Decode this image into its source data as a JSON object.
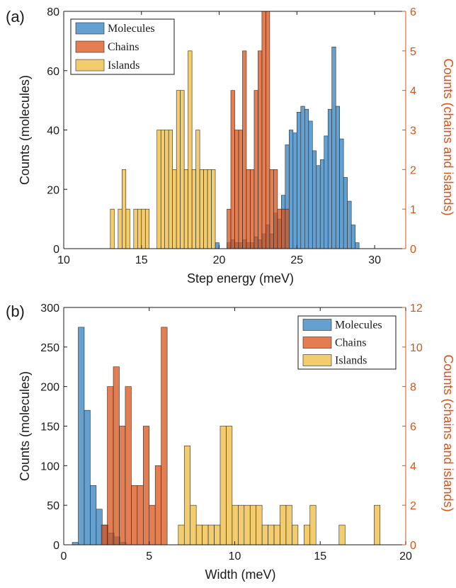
{
  "colors": {
    "molecules": "#4a90c8",
    "chains": "#d95319",
    "islands": "#edb120",
    "axis_right": "#d95319",
    "axis": "#1a1a1a"
  },
  "chart_data": [
    {
      "type": "bar",
      "panel_label": "(a)",
      "xlabel": "Step energy (meV)",
      "ylabel": "Counts (molecules)",
      "ylabel_right": "Counts (chains and islands)",
      "xlim": [
        10,
        32
      ],
      "ylim": [
        0,
        80
      ],
      "ylim_right": [
        0,
        6
      ],
      "xticks": [
        "10",
        "15",
        "20",
        "25",
        "30"
      ],
      "yticks": [
        "0",
        "20",
        "40",
        "60",
        "80"
      ],
      "yticks_right": [
        "0",
        "1",
        "2",
        "3",
        "4",
        "5",
        "6"
      ],
      "bin_width": 0.25,
      "legend": {
        "position": "top-left",
        "entries": [
          "Molecules",
          "Chains",
          "Islands"
        ]
      },
      "series": [
        {
          "name": "Molecules",
          "axis": "left",
          "bin_starts": [
            19.75,
            20.5,
            20.75,
            21,
            21.25,
            21.5,
            21.75,
            22,
            22.25,
            22.5,
            22.75,
            23,
            23.25,
            23.5,
            23.75,
            24,
            24.25,
            24.5,
            24.75,
            25,
            25.25,
            25.5,
            25.75,
            26,
            26.25,
            26.5,
            26.75,
            27,
            27.25,
            27.5,
            27.75,
            28,
            28.25,
            28.5,
            28.75
          ],
          "values": [
            2,
            2,
            3,
            2,
            2,
            3,
            2,
            2,
            4,
            3,
            5,
            8,
            5,
            12,
            10,
            18,
            35,
            40,
            39,
            46,
            48,
            47,
            43,
            33,
            28,
            30,
            38,
            47,
            68,
            48,
            37,
            24,
            16,
            8,
            2
          ]
        },
        {
          "name": "Chains",
          "axis": "right",
          "bin_starts": [
            20.5,
            20.75,
            21.0,
            21.25,
            21.5,
            21.75,
            22.0,
            22.25,
            22.5,
            22.75,
            23.0,
            23.25,
            23.5,
            23.75,
            24.0,
            24.25
          ],
          "values": [
            1,
            4,
            3,
            3,
            5,
            2,
            2,
            4,
            5,
            6,
            6,
            2,
            2,
            1,
            1,
            1
          ]
        },
        {
          "name": "Islands",
          "axis": "right",
          "bin_starts": [
            13.0,
            13.5,
            13.75,
            14.0,
            14.5,
            14.75,
            15.0,
            15.25,
            16.0,
            16.25,
            16.5,
            16.75,
            17.0,
            17.25,
            17.5,
            17.75,
            18.0,
            18.25,
            18.5,
            18.75,
            19.0,
            19.25,
            19.5
          ],
          "values": [
            1,
            1,
            2,
            1,
            1,
            1,
            1,
            1,
            3,
            3,
            3,
            3,
            2,
            4,
            4,
            2,
            5,
            2,
            3,
            2,
            2,
            2,
            2
          ]
        }
      ]
    },
    {
      "type": "bar",
      "panel_label": "(b)",
      "xlabel": "Width (meV)",
      "ylabel": "Counts (molecules)",
      "ylabel_right": "Counts (chains and islands)",
      "xlim": [
        0,
        20
      ],
      "ylim": [
        0,
        300
      ],
      "ylim_right": [
        0,
        12
      ],
      "xticks": [
        "0",
        "5",
        "10",
        "15",
        "20"
      ],
      "yticks": [
        "0",
        "50",
        "100",
        "150",
        "200",
        "250",
        "300"
      ],
      "yticks_right": [
        "0",
        "2",
        "4",
        "6",
        "8",
        "10",
        "12"
      ],
      "bin_width": 0.35,
      "legend": {
        "position": "top-right",
        "entries": [
          "Molecules",
          "Chains",
          "Islands"
        ]
      },
      "series": [
        {
          "name": "Molecules",
          "axis": "left",
          "bin_starts": [
            0.5,
            0.85,
            1.2,
            1.55,
            1.9,
            2.25,
            2.6,
            2.95,
            3.3
          ],
          "values": [
            3,
            275,
            170,
            75,
            45,
            25,
            15,
            10,
            3
          ]
        },
        {
          "name": "Chains",
          "axis": "right",
          "bin_starts": [
            2.2,
            2.55,
            2.9,
            3.25,
            3.6,
            3.95,
            4.3,
            4.65,
            5.0,
            5.35,
            5.7
          ],
          "values": [
            1,
            8,
            9,
            6,
            8,
            3,
            3,
            6,
            2,
            4,
            11
          ]
        },
        {
          "name": "Islands",
          "axis": "right",
          "bin_starts": [
            6.7,
            7.05,
            7.4,
            7.75,
            8.1,
            8.45,
            8.8,
            9.15,
            9.5,
            9.85,
            10.2,
            10.55,
            10.9,
            11.25,
            11.6,
            11.95,
            12.3,
            12.65,
            13.0,
            13.35,
            14.05,
            14.4,
            16.1,
            18.15
          ],
          "values": [
            1,
            5,
            2,
            1,
            1,
            1,
            1,
            6,
            6,
            2,
            2,
            2,
            2,
            2,
            1,
            1,
            1,
            2,
            2,
            1,
            1,
            2,
            1,
            2
          ]
        }
      ]
    }
  ]
}
